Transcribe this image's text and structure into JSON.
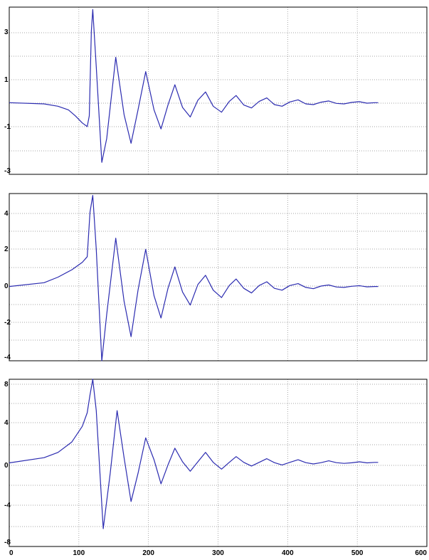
{
  "chart_data": [
    {
      "type": "line",
      "xlim": [
        0,
        600
      ],
      "ylim": [
        -3,
        4
      ],
      "ytick_labels": [
        "3",
        "1",
        "-1",
        "-3"
      ],
      "grid": true,
      "color": "#2b2bb0",
      "x": [
        0,
        50,
        70,
        85,
        95,
        105,
        112,
        115,
        118,
        120,
        125,
        133,
        140,
        153,
        165,
        175,
        185,
        196,
        208,
        218,
        228,
        238,
        249,
        260,
        271,
        282,
        293,
        305,
        316,
        326,
        337,
        348,
        359,
        370,
        381,
        392,
        403,
        415,
        426,
        437,
        448,
        459,
        470,
        481,
        492,
        503,
        514,
        525,
        530
      ],
      "y": [
        0,
        -0.05,
        -0.15,
        -0.3,
        -0.55,
        -0.85,
        -1.0,
        -0.55,
        3.0,
        3.9,
        1.5,
        -2.5,
        -1.5,
        1.9,
        -0.5,
        -1.7,
        -0.3,
        1.3,
        -0.3,
        -1.1,
        -0.1,
        0.75,
        -0.2,
        -0.6,
        0.1,
        0.45,
        -0.15,
        -0.4,
        0.05,
        0.3,
        -0.1,
        -0.22,
        0.05,
        0.2,
        -0.08,
        -0.15,
        0.03,
        0.12,
        -0.05,
        -0.08,
        0.02,
        0.07,
        -0.03,
        -0.05,
        0.01,
        0.04,
        -0.02,
        0,
        0
      ]
    },
    {
      "type": "line",
      "xlim": [
        0,
        600
      ],
      "ylim": [
        -4,
        5
      ],
      "ytick_labels": [
        "4",
        "2",
        "0",
        "-2",
        "-4"
      ],
      "grid": true,
      "color": "#2b2bb0",
      "x": [
        0,
        50,
        70,
        90,
        105,
        112,
        116,
        120,
        125,
        133,
        140,
        153,
        165,
        175,
        185,
        196,
        208,
        218,
        228,
        238,
        249,
        260,
        271,
        282,
        293,
        305,
        316,
        326,
        337,
        348,
        359,
        370,
        381,
        392,
        403,
        415,
        426,
        437,
        448,
        459,
        470,
        481,
        492,
        503,
        514,
        525,
        530
      ],
      "y": [
        0,
        0.2,
        0.5,
        0.9,
        1.3,
        1.6,
        4.0,
        4.9,
        2.0,
        -4.0,
        -1.5,
        2.6,
        -0.8,
        -2.7,
        -0.2,
        2.0,
        -0.5,
        -1.7,
        -0.1,
        1.05,
        -0.3,
        -1.0,
        0.1,
        0.6,
        -0.2,
        -0.6,
        0.05,
        0.4,
        -0.1,
        -0.35,
        0.05,
        0.25,
        -0.1,
        -0.2,
        0.05,
        0.15,
        -0.05,
        -0.12,
        0.02,
        0.08,
        -0.03,
        -0.05,
        0.01,
        0.04,
        -0.02,
        0,
        0
      ]
    },
    {
      "type": "line",
      "xlim": [
        0,
        600
      ],
      "ylim": [
        -8,
        8
      ],
      "ytick_labels": [
        "8",
        "4",
        "0",
        "-4",
        "-8"
      ],
      "xtick_labels": [
        "0",
        "100",
        "200",
        "300",
        "400",
        "500",
        "600"
      ],
      "grid": true,
      "color": "#2b2bb0",
      "x": [
        0,
        50,
        70,
        90,
        105,
        112,
        116,
        120,
        125,
        135,
        145,
        155,
        165,
        175,
        185,
        196,
        208,
        218,
        228,
        238,
        249,
        260,
        271,
        282,
        293,
        305,
        316,
        326,
        337,
        348,
        359,
        370,
        381,
        392,
        403,
        415,
        426,
        437,
        448,
        459,
        470,
        481,
        492,
        503,
        514,
        525,
        530
      ],
      "y": [
        0,
        0.5,
        1.0,
        2.0,
        3.5,
        4.8,
        6.5,
        8.0,
        5.0,
        -6.3,
        -1.0,
        5.0,
        0.5,
        -3.7,
        -1.0,
        2.4,
        0.3,
        -2.0,
        -0.2,
        1.4,
        0.1,
        -0.8,
        0.1,
        1.0,
        0.05,
        -0.6,
        0.05,
        0.6,
        0.05,
        -0.3,
        0.05,
        0.4,
        0.02,
        -0.2,
        0.05,
        0.3,
        0.02,
        -0.1,
        0.02,
        0.2,
        0.02,
        -0.05,
        0.01,
        0.1,
        0.0,
        0.05,
        0.05
      ]
    }
  ]
}
